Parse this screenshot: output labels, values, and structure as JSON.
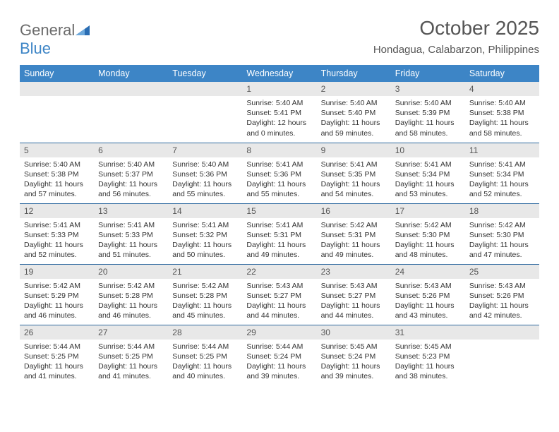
{
  "brand": {
    "part1": "General",
    "part2": "Blue"
  },
  "title": "October 2025",
  "location": "Hondagua, Calabarzon, Philippines",
  "colors": {
    "header_bg": "#3d85c6",
    "header_text": "#ffffff",
    "daynum_bg": "#e8e8e8",
    "row_border": "#2f6aa0",
    "logo_gray": "#6b6b6b",
    "logo_blue": "#3d85c6"
  },
  "typography": {
    "title_fontsize": 28,
    "location_fontsize": 15,
    "dayheader_fontsize": 12.5,
    "daynum_fontsize": 12,
    "cell_fontsize": 10.5
  },
  "day_headers": [
    "Sunday",
    "Monday",
    "Tuesday",
    "Wednesday",
    "Thursday",
    "Friday",
    "Saturday"
  ],
  "weeks": [
    [
      null,
      null,
      null,
      {
        "n": "1",
        "sr": "5:40 AM",
        "ss": "5:41 PM",
        "dl": "12 hours and 0 minutes."
      },
      {
        "n": "2",
        "sr": "5:40 AM",
        "ss": "5:40 PM",
        "dl": "11 hours and 59 minutes."
      },
      {
        "n": "3",
        "sr": "5:40 AM",
        "ss": "5:39 PM",
        "dl": "11 hours and 58 minutes."
      },
      {
        "n": "4",
        "sr": "5:40 AM",
        "ss": "5:38 PM",
        "dl": "11 hours and 58 minutes."
      }
    ],
    [
      {
        "n": "5",
        "sr": "5:40 AM",
        "ss": "5:38 PM",
        "dl": "11 hours and 57 minutes."
      },
      {
        "n": "6",
        "sr": "5:40 AM",
        "ss": "5:37 PM",
        "dl": "11 hours and 56 minutes."
      },
      {
        "n": "7",
        "sr": "5:40 AM",
        "ss": "5:36 PM",
        "dl": "11 hours and 55 minutes."
      },
      {
        "n": "8",
        "sr": "5:41 AM",
        "ss": "5:36 PM",
        "dl": "11 hours and 55 minutes."
      },
      {
        "n": "9",
        "sr": "5:41 AM",
        "ss": "5:35 PM",
        "dl": "11 hours and 54 minutes."
      },
      {
        "n": "10",
        "sr": "5:41 AM",
        "ss": "5:34 PM",
        "dl": "11 hours and 53 minutes."
      },
      {
        "n": "11",
        "sr": "5:41 AM",
        "ss": "5:34 PM",
        "dl": "11 hours and 52 minutes."
      }
    ],
    [
      {
        "n": "12",
        "sr": "5:41 AM",
        "ss": "5:33 PM",
        "dl": "11 hours and 52 minutes."
      },
      {
        "n": "13",
        "sr": "5:41 AM",
        "ss": "5:33 PM",
        "dl": "11 hours and 51 minutes."
      },
      {
        "n": "14",
        "sr": "5:41 AM",
        "ss": "5:32 PM",
        "dl": "11 hours and 50 minutes."
      },
      {
        "n": "15",
        "sr": "5:41 AM",
        "ss": "5:31 PM",
        "dl": "11 hours and 49 minutes."
      },
      {
        "n": "16",
        "sr": "5:42 AM",
        "ss": "5:31 PM",
        "dl": "11 hours and 49 minutes."
      },
      {
        "n": "17",
        "sr": "5:42 AM",
        "ss": "5:30 PM",
        "dl": "11 hours and 48 minutes."
      },
      {
        "n": "18",
        "sr": "5:42 AM",
        "ss": "5:30 PM",
        "dl": "11 hours and 47 minutes."
      }
    ],
    [
      {
        "n": "19",
        "sr": "5:42 AM",
        "ss": "5:29 PM",
        "dl": "11 hours and 46 minutes."
      },
      {
        "n": "20",
        "sr": "5:42 AM",
        "ss": "5:28 PM",
        "dl": "11 hours and 46 minutes."
      },
      {
        "n": "21",
        "sr": "5:42 AM",
        "ss": "5:28 PM",
        "dl": "11 hours and 45 minutes."
      },
      {
        "n": "22",
        "sr": "5:43 AM",
        "ss": "5:27 PM",
        "dl": "11 hours and 44 minutes."
      },
      {
        "n": "23",
        "sr": "5:43 AM",
        "ss": "5:27 PM",
        "dl": "11 hours and 44 minutes."
      },
      {
        "n": "24",
        "sr": "5:43 AM",
        "ss": "5:26 PM",
        "dl": "11 hours and 43 minutes."
      },
      {
        "n": "25",
        "sr": "5:43 AM",
        "ss": "5:26 PM",
        "dl": "11 hours and 42 minutes."
      }
    ],
    [
      {
        "n": "26",
        "sr": "5:44 AM",
        "ss": "5:25 PM",
        "dl": "11 hours and 41 minutes."
      },
      {
        "n": "27",
        "sr": "5:44 AM",
        "ss": "5:25 PM",
        "dl": "11 hours and 41 minutes."
      },
      {
        "n": "28",
        "sr": "5:44 AM",
        "ss": "5:25 PM",
        "dl": "11 hours and 40 minutes."
      },
      {
        "n": "29",
        "sr": "5:44 AM",
        "ss": "5:24 PM",
        "dl": "11 hours and 39 minutes."
      },
      {
        "n": "30",
        "sr": "5:45 AM",
        "ss": "5:24 PM",
        "dl": "11 hours and 39 minutes."
      },
      {
        "n": "31",
        "sr": "5:45 AM",
        "ss": "5:23 PM",
        "dl": "11 hours and 38 minutes."
      },
      null
    ]
  ],
  "labels": {
    "sunrise_prefix": "Sunrise: ",
    "sunset_prefix": "Sunset: ",
    "daylight_prefix": "Daylight: "
  }
}
